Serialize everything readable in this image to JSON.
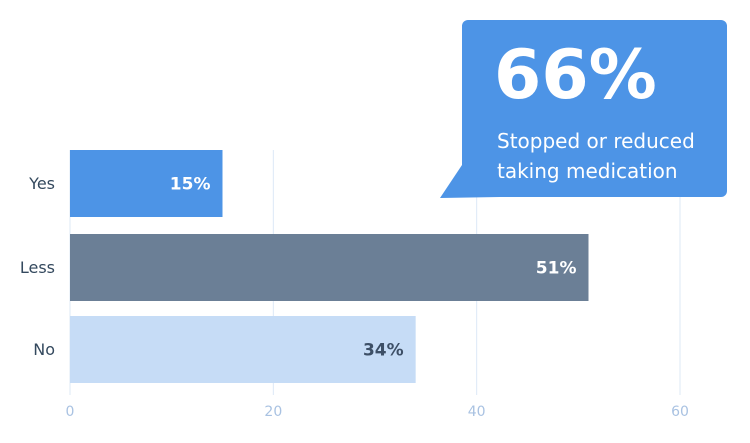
{
  "chart_data": {
    "type": "hbar",
    "categories": [
      "Yes",
      "Less",
      "No"
    ],
    "values": [
      15,
      51,
      34
    ],
    "value_labels": [
      "15%",
      "51%",
      "34%"
    ],
    "colors": [
      "#4d94e6",
      "#6b7f96",
      "#c6dcf6"
    ],
    "xlim": [
      0,
      60
    ],
    "xticks": [
      0,
      20,
      40,
      60
    ],
    "grid": true,
    "annotation": {
      "value": "66%",
      "text": "Stopped or reduced taking medication",
      "color": "#4d94e6"
    }
  }
}
